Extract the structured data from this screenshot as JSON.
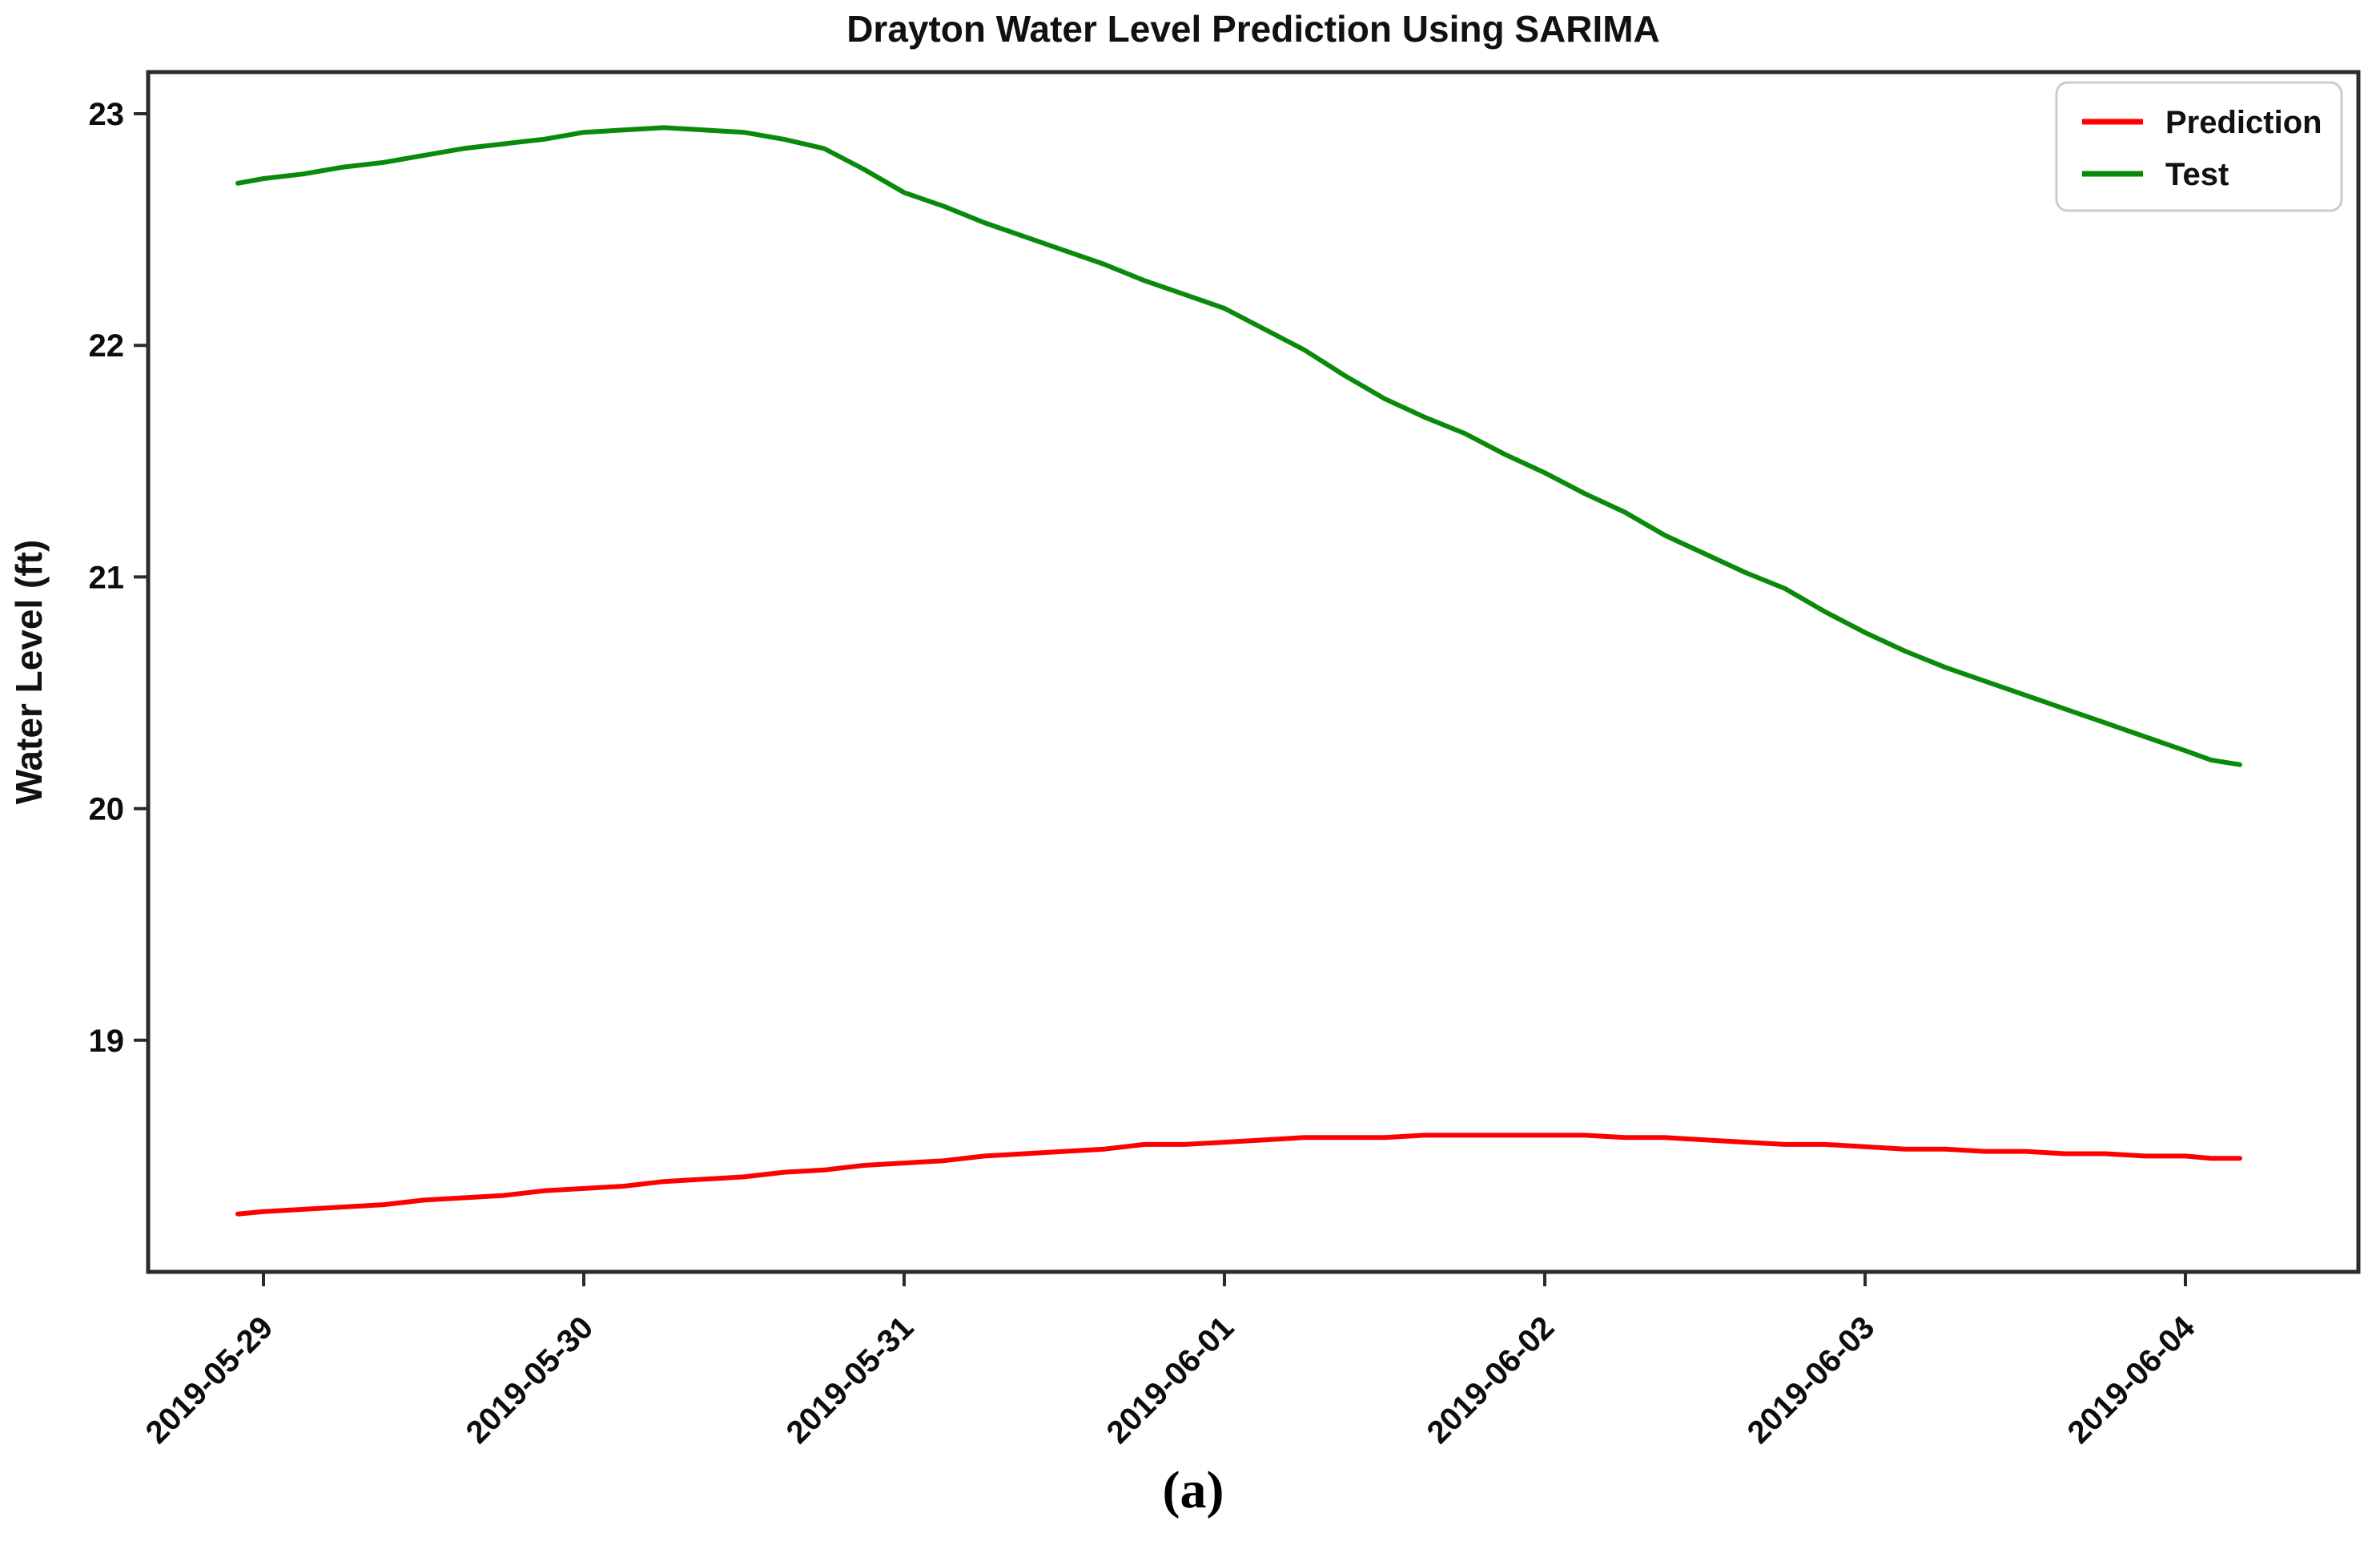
{
  "figure": {
    "caption": "(a)"
  },
  "chart_data": {
    "type": "line",
    "title": "Drayton Water Level Prediction Using SARIMA",
    "xlabel": "",
    "ylabel": "Water Level (ft)",
    "x_unit": "days since 2019-05-29",
    "x_tick_positions": [
      0,
      1,
      2,
      3,
      4,
      5,
      6
    ],
    "x_tick_labels": [
      "2019-05-29",
      "2019-05-30",
      "2019-05-31",
      "2019-06-01",
      "2019-06-02",
      "2019-06-03",
      "2019-06-04"
    ],
    "y_ticks": [
      19,
      20,
      21,
      22,
      23
    ],
    "xlim": [
      -0.36,
      6.54
    ],
    "ylim": [
      18.0,
      23.18
    ],
    "grid": false,
    "legend": {
      "position": "upper right",
      "entries": [
        {
          "label": "Prediction",
          "color": "#ff0000"
        },
        {
          "label": "Test",
          "color": "#0a8a0a"
        }
      ]
    },
    "x": [
      -0.08,
      0,
      0.125,
      0.25,
      0.375,
      0.5,
      0.625,
      0.75,
      0.875,
      1,
      1.125,
      1.25,
      1.375,
      1.5,
      1.625,
      1.75,
      1.875,
      2,
      2.125,
      2.25,
      2.375,
      2.5,
      2.625,
      2.75,
      2.875,
      3,
      3.125,
      3.25,
      3.375,
      3.5,
      3.625,
      3.75,
      3.875,
      4,
      4.125,
      4.25,
      4.375,
      4.5,
      4.625,
      4.75,
      4.875,
      5,
      5.125,
      5.25,
      5.375,
      5.5,
      5.625,
      5.75,
      5.875,
      6,
      6.08,
      6.17
    ],
    "series": [
      {
        "name": "Prediction",
        "color": "#ff0000",
        "values": [
          18.25,
          18.26,
          18.27,
          18.28,
          18.29,
          18.31,
          18.32,
          18.33,
          18.35,
          18.36,
          18.37,
          18.39,
          18.4,
          18.41,
          18.43,
          18.44,
          18.46,
          18.47,
          18.48,
          18.5,
          18.51,
          18.52,
          18.53,
          18.55,
          18.55,
          18.56,
          18.57,
          18.58,
          18.58,
          18.58,
          18.59,
          18.59,
          18.59,
          18.59,
          18.59,
          18.58,
          18.58,
          18.57,
          18.56,
          18.55,
          18.55,
          18.54,
          18.53,
          18.53,
          18.52,
          18.52,
          18.51,
          18.51,
          18.5,
          18.5,
          18.49,
          18.49
        ]
      },
      {
        "name": "Test",
        "color": "#0a8a0a",
        "values": [
          22.7,
          22.72,
          22.74,
          22.77,
          22.79,
          22.82,
          22.85,
          22.87,
          22.89,
          22.92,
          22.93,
          22.94,
          22.93,
          22.92,
          22.89,
          22.85,
          22.76,
          22.66,
          22.6,
          22.53,
          22.47,
          22.41,
          22.35,
          22.28,
          22.22,
          22.16,
          22.07,
          21.98,
          21.87,
          21.77,
          21.69,
          21.62,
          21.53,
          21.45,
          21.36,
          21.28,
          21.18,
          21.1,
          21.02,
          20.95,
          20.85,
          20.76,
          20.68,
          20.61,
          20.55,
          20.49,
          20.43,
          20.37,
          20.31,
          20.25,
          20.21,
          20.19
        ]
      }
    ]
  }
}
